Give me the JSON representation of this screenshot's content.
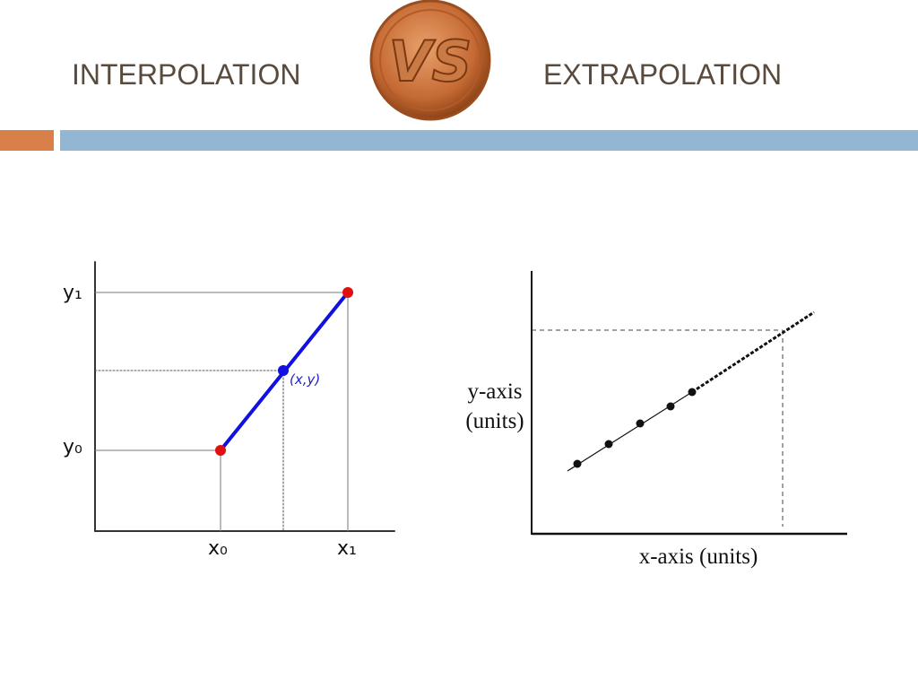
{
  "header": {
    "left_title": "INTERPOLATION",
    "logo": "VS",
    "right_title": "EXTRAPOLATION"
  },
  "interpolation": {
    "y1_label": "y₁",
    "y0_label": "y₀",
    "point_label": "(x,y)",
    "x0_label": "x₀",
    "x1_label": "x₁"
  },
  "extrapolation": {
    "y_axis_label": [
      "y-axis",
      "(units)"
    ],
    "x_axis_label": "x-axis (units)"
  }
}
